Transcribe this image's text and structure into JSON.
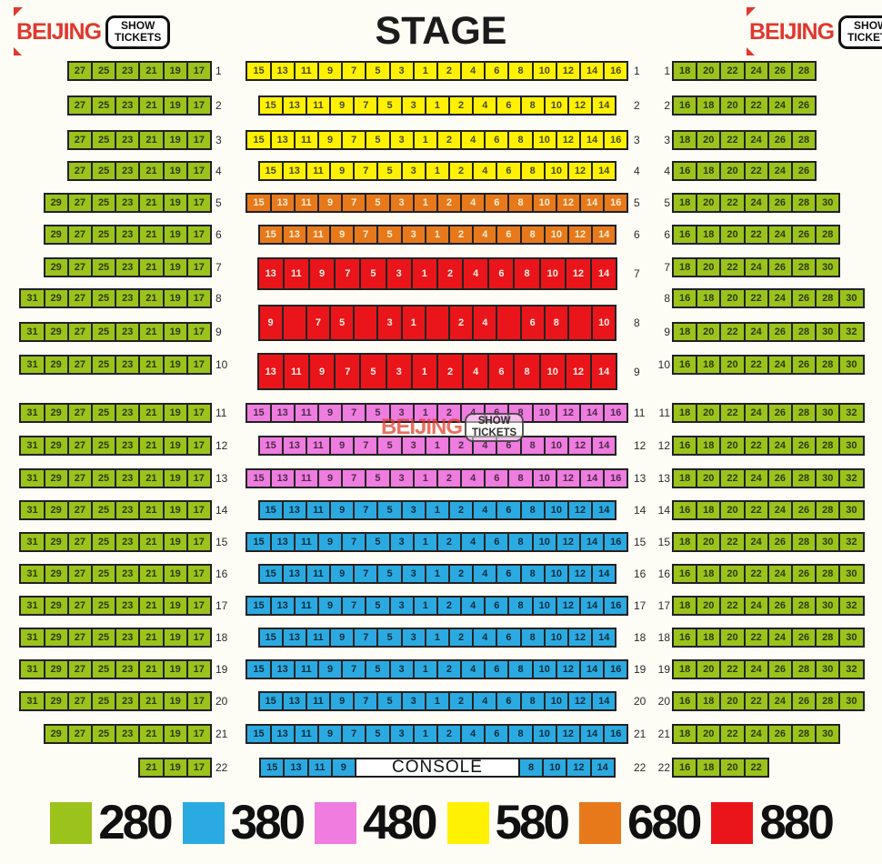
{
  "title": "STAGE",
  "brand": {
    "name": "BEIJING",
    "badge_line1": "SHOW",
    "badge_line2": "TICKETS"
  },
  "watermark": {
    "name": "BEIJING",
    "badge_line1": "SHOW",
    "badge_line2": "TICKETS"
  },
  "console_label": "CONSOLE",
  "colors": {
    "green": "#9bc31c",
    "blue": "#2baae1",
    "pink": "#ef7cdf",
    "yellow": "#fff101",
    "orange": "#e7791a",
    "red": "#e9151b"
  },
  "legend": [
    {
      "label": "280",
      "color": "green"
    },
    {
      "label": "380",
      "color": "blue"
    },
    {
      "label": "480",
      "color": "pink"
    },
    {
      "label": "580",
      "color": "yellow"
    },
    {
      "label": "680",
      "color": "orange"
    },
    {
      "label": "880",
      "color": "red"
    }
  ],
  "side_rows": [
    {
      "row": "1",
      "left": [
        "27",
        "25",
        "23",
        "21",
        "19",
        "17"
      ],
      "right": [
        "18",
        "20",
        "22",
        "24",
        "26",
        "28"
      ]
    },
    {
      "row": "2",
      "left": [
        "27",
        "25",
        "23",
        "21",
        "19",
        "17"
      ],
      "right": [
        "16",
        "18",
        "20",
        "22",
        "24",
        "26"
      ]
    },
    {
      "row": "3",
      "left": [
        "27",
        "25",
        "23",
        "21",
        "19",
        "17"
      ],
      "right": [
        "18",
        "20",
        "22",
        "24",
        "26",
        "28"
      ]
    },
    {
      "row": "4",
      "left": [
        "27",
        "25",
        "23",
        "21",
        "19",
        "17"
      ],
      "right": [
        "16",
        "18",
        "20",
        "22",
        "24",
        "26"
      ]
    },
    {
      "row": "5",
      "left": [
        "29",
        "27",
        "25",
        "23",
        "21",
        "19",
        "17"
      ],
      "right": [
        "18",
        "20",
        "22",
        "24",
        "26",
        "28",
        "30"
      ]
    },
    {
      "row": "6",
      "left": [
        "29",
        "27",
        "25",
        "23",
        "21",
        "19",
        "17"
      ],
      "right": [
        "16",
        "18",
        "20",
        "22",
        "24",
        "26",
        "28"
      ]
    },
    {
      "row": "7",
      "left": [
        "29",
        "27",
        "25",
        "23",
        "21",
        "19",
        "17"
      ],
      "right": [
        "18",
        "20",
        "22",
        "24",
        "26",
        "28",
        "30"
      ]
    },
    {
      "row": "8",
      "left": [
        "31",
        "29",
        "27",
        "25",
        "23",
        "21",
        "19",
        "17"
      ],
      "right": [
        "16",
        "18",
        "20",
        "22",
        "24",
        "26",
        "28",
        "30"
      ]
    },
    {
      "row": "9",
      "left": [
        "31",
        "29",
        "27",
        "25",
        "23",
        "21",
        "19",
        "17"
      ],
      "right": [
        "18",
        "20",
        "22",
        "24",
        "26",
        "28",
        "30",
        "32"
      ]
    },
    {
      "row": "10",
      "left": [
        "31",
        "29",
        "27",
        "25",
        "23",
        "21",
        "19",
        "17"
      ],
      "right": [
        "16",
        "18",
        "20",
        "22",
        "24",
        "26",
        "28",
        "30"
      ]
    },
    {
      "row": "11",
      "left": [
        "31",
        "29",
        "27",
        "25",
        "23",
        "21",
        "19",
        "17"
      ],
      "right": [
        "18",
        "20",
        "22",
        "24",
        "26",
        "28",
        "30",
        "32"
      ]
    },
    {
      "row": "12",
      "left": [
        "31",
        "29",
        "27",
        "25",
        "23",
        "21",
        "19",
        "17"
      ],
      "right": [
        "16",
        "18",
        "20",
        "22",
        "24",
        "26",
        "28",
        "30"
      ]
    },
    {
      "row": "13",
      "left": [
        "31",
        "29",
        "27",
        "25",
        "23",
        "21",
        "19",
        "17"
      ],
      "right": [
        "18",
        "20",
        "22",
        "24",
        "26",
        "28",
        "30",
        "32"
      ]
    },
    {
      "row": "14",
      "left": [
        "31",
        "29",
        "27",
        "25",
        "23",
        "21",
        "19",
        "17"
      ],
      "right": [
        "16",
        "18",
        "20",
        "22",
        "24",
        "26",
        "28",
        "30"
      ]
    },
    {
      "row": "15",
      "left": [
        "31",
        "29",
        "27",
        "25",
        "23",
        "21",
        "19",
        "17"
      ],
      "right": [
        "18",
        "20",
        "22",
        "24",
        "26",
        "28",
        "30",
        "32"
      ]
    },
    {
      "row": "16",
      "left": [
        "31",
        "29",
        "27",
        "25",
        "23",
        "21",
        "19",
        "17"
      ],
      "right": [
        "16",
        "18",
        "20",
        "22",
        "24",
        "26",
        "28",
        "30"
      ]
    },
    {
      "row": "17",
      "left": [
        "31",
        "29",
        "27",
        "25",
        "23",
        "21",
        "19",
        "17"
      ],
      "right": [
        "18",
        "20",
        "22",
        "24",
        "26",
        "28",
        "30",
        "32"
      ]
    },
    {
      "row": "18",
      "left": [
        "31",
        "29",
        "27",
        "25",
        "23",
        "21",
        "19",
        "17"
      ],
      "right": [
        "16",
        "18",
        "20",
        "22",
        "24",
        "26",
        "28",
        "30"
      ]
    },
    {
      "row": "19",
      "left": [
        "31",
        "29",
        "27",
        "25",
        "23",
        "21",
        "19",
        "17"
      ],
      "right": [
        "18",
        "20",
        "22",
        "24",
        "26",
        "28",
        "30",
        "32"
      ]
    },
    {
      "row": "20",
      "left": [
        "31",
        "29",
        "27",
        "25",
        "23",
        "21",
        "19",
        "17"
      ],
      "right": [
        "16",
        "18",
        "20",
        "22",
        "24",
        "26",
        "28",
        "30"
      ]
    },
    {
      "row": "21",
      "left": [
        "29",
        "27",
        "25",
        "23",
        "21",
        "19",
        "17"
      ],
      "right": [
        "18",
        "20",
        "22",
        "24",
        "26",
        "28",
        "30"
      ]
    },
    {
      "row": "22",
      "left": [
        "21",
        "19",
        "17"
      ],
      "right": [
        "16",
        "18",
        "20",
        "22"
      ]
    }
  ],
  "center_rows": [
    {
      "row": "1",
      "color": "yellow",
      "seats": [
        "15",
        "13",
        "11",
        "9",
        "7",
        "5",
        "3",
        "1",
        "2",
        "4",
        "6",
        "8",
        "10",
        "12",
        "14",
        "16"
      ]
    },
    {
      "row": "2",
      "color": "yellow",
      "seats": [
        "15",
        "13",
        "11",
        "9",
        "7",
        "5",
        "3",
        "1",
        "2",
        "4",
        "6",
        "8",
        "10",
        "12",
        "14"
      ]
    },
    {
      "row": "3",
      "color": "yellow",
      "seats": [
        "15",
        "13",
        "11",
        "9",
        "7",
        "5",
        "3",
        "1",
        "2",
        "4",
        "6",
        "8",
        "10",
        "12",
        "14",
        "16"
      ]
    },
    {
      "row": "4",
      "color": "yellow",
      "seats": [
        "15",
        "13",
        "11",
        "9",
        "7",
        "5",
        "3",
        "1",
        "2",
        "4",
        "6",
        "8",
        "10",
        "12",
        "14"
      ]
    },
    {
      "row": "5",
      "color": "orange",
      "seats": [
        "15",
        "13",
        "11",
        "9",
        "7",
        "5",
        "3",
        "1",
        "2",
        "4",
        "6",
        "8",
        "10",
        "12",
        "14",
        "16"
      ]
    },
    {
      "row": "6",
      "color": "orange",
      "seats": [
        "15",
        "13",
        "11",
        "9",
        "7",
        "5",
        "3",
        "1",
        "2",
        "4",
        "6",
        "8",
        "10",
        "12",
        "14"
      ]
    },
    {
      "row": "7",
      "color": "red",
      "seats": [
        "13",
        "11",
        "9",
        "7",
        "5",
        "3",
        "1",
        "2",
        "4",
        "6",
        "8",
        "10",
        "12",
        "14"
      ]
    },
    {
      "row": "8",
      "color": "red",
      "seats": [
        "9",
        "",
        "7",
        "5",
        "",
        "3",
        "1",
        "",
        "2",
        "4",
        "",
        "6",
        "8",
        "",
        "10"
      ]
    },
    {
      "row": "9",
      "color": "red",
      "seats": [
        "13",
        "11",
        "9",
        "7",
        "5",
        "3",
        "1",
        "2",
        "4",
        "6",
        "8",
        "10",
        "12",
        "14"
      ]
    },
    {
      "row": "11",
      "color": "pink",
      "seats": [
        "15",
        "13",
        "11",
        "9",
        "7",
        "5",
        "3",
        "1",
        "2",
        "4",
        "6",
        "8",
        "10",
        "12",
        "14",
        "16"
      ]
    },
    {
      "row": "12",
      "color": "pink",
      "seats": [
        "15",
        "13",
        "11",
        "9",
        "7",
        "5",
        "3",
        "1",
        "2",
        "4",
        "6",
        "8",
        "10",
        "12",
        "14"
      ]
    },
    {
      "row": "13",
      "color": "pink",
      "seats": [
        "15",
        "13",
        "11",
        "9",
        "7",
        "5",
        "3",
        "1",
        "2",
        "4",
        "6",
        "8",
        "10",
        "12",
        "14",
        "16"
      ]
    },
    {
      "row": "14",
      "color": "blue",
      "seats": [
        "15",
        "13",
        "11",
        "9",
        "7",
        "5",
        "3",
        "1",
        "2",
        "4",
        "6",
        "8",
        "10",
        "12",
        "14"
      ]
    },
    {
      "row": "15",
      "color": "blue",
      "seats": [
        "15",
        "13",
        "11",
        "9",
        "7",
        "5",
        "3",
        "1",
        "2",
        "4",
        "6",
        "8",
        "10",
        "12",
        "14",
        "16"
      ]
    },
    {
      "row": "16",
      "color": "blue",
      "seats": [
        "15",
        "13",
        "11",
        "9",
        "7",
        "5",
        "3",
        "1",
        "2",
        "4",
        "6",
        "8",
        "10",
        "12",
        "14"
      ]
    },
    {
      "row": "17",
      "color": "blue",
      "seats": [
        "15",
        "13",
        "11",
        "9",
        "7",
        "5",
        "3",
        "1",
        "2",
        "4",
        "6",
        "8",
        "10",
        "12",
        "14",
        "16"
      ]
    },
    {
      "row": "18",
      "color": "blue",
      "seats": [
        "15",
        "13",
        "11",
        "9",
        "7",
        "5",
        "3",
        "1",
        "2",
        "4",
        "6",
        "8",
        "10",
        "12",
        "14"
      ]
    },
    {
      "row": "19",
      "color": "blue",
      "seats": [
        "15",
        "13",
        "11",
        "9",
        "7",
        "5",
        "3",
        "1",
        "2",
        "4",
        "6",
        "8",
        "10",
        "12",
        "14",
        "16"
      ]
    },
    {
      "row": "20",
      "color": "blue",
      "seats": [
        "15",
        "13",
        "11",
        "9",
        "7",
        "5",
        "3",
        "1",
        "2",
        "4",
        "6",
        "8",
        "10",
        "12",
        "14"
      ]
    },
    {
      "row": "21",
      "color": "blue",
      "seats": [
        "15",
        "13",
        "11",
        "9",
        "7",
        "5",
        "3",
        "1",
        "2",
        "4",
        "6",
        "8",
        "10",
        "12",
        "14",
        "16"
      ]
    },
    {
      "row": "22",
      "color": "blue",
      "console": true,
      "left_seats": [
        "15",
        "13",
        "11",
        "9"
      ],
      "right_seats": [
        "8",
        "10",
        "12",
        "14"
      ]
    }
  ]
}
